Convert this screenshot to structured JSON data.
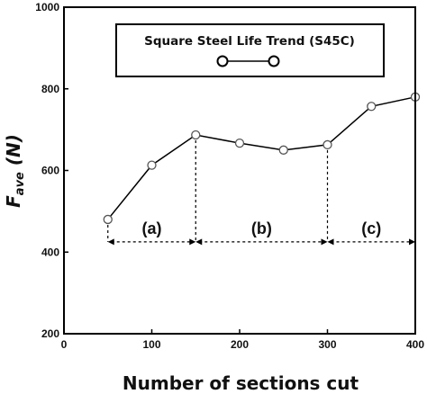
{
  "chart_data": {
    "type": "line",
    "xlabel": "Number of sections cut",
    "ylabel_main": "F",
    "ylabel_sub": "ave",
    "ylabel_unit": " (N)",
    "xlim": [
      0,
      400
    ],
    "ylim": [
      200,
      1000
    ],
    "x_ticks": [
      0,
      100,
      200,
      300,
      400
    ],
    "y_ticks": [
      200,
      400,
      600,
      800,
      1000
    ],
    "legend_placement": "top-center",
    "series": [
      {
        "name": "Square Steel Life Trend (S45C)",
        "marker": "open-circle",
        "color": "#000000",
        "x": [
          50,
          100,
          150,
          200,
          250,
          300,
          350,
          400
        ],
        "y": [
          480,
          613,
          687,
          667,
          650,
          663,
          757,
          780
        ]
      }
    ],
    "regions": [
      {
        "label": "(a)",
        "from": 50,
        "to": 150
      },
      {
        "label": "(b)",
        "from": 150,
        "to": 300
      },
      {
        "label": "(c)",
        "from": 300,
        "to": 400
      }
    ],
    "region_arrow_y": 425,
    "grid": false
  }
}
